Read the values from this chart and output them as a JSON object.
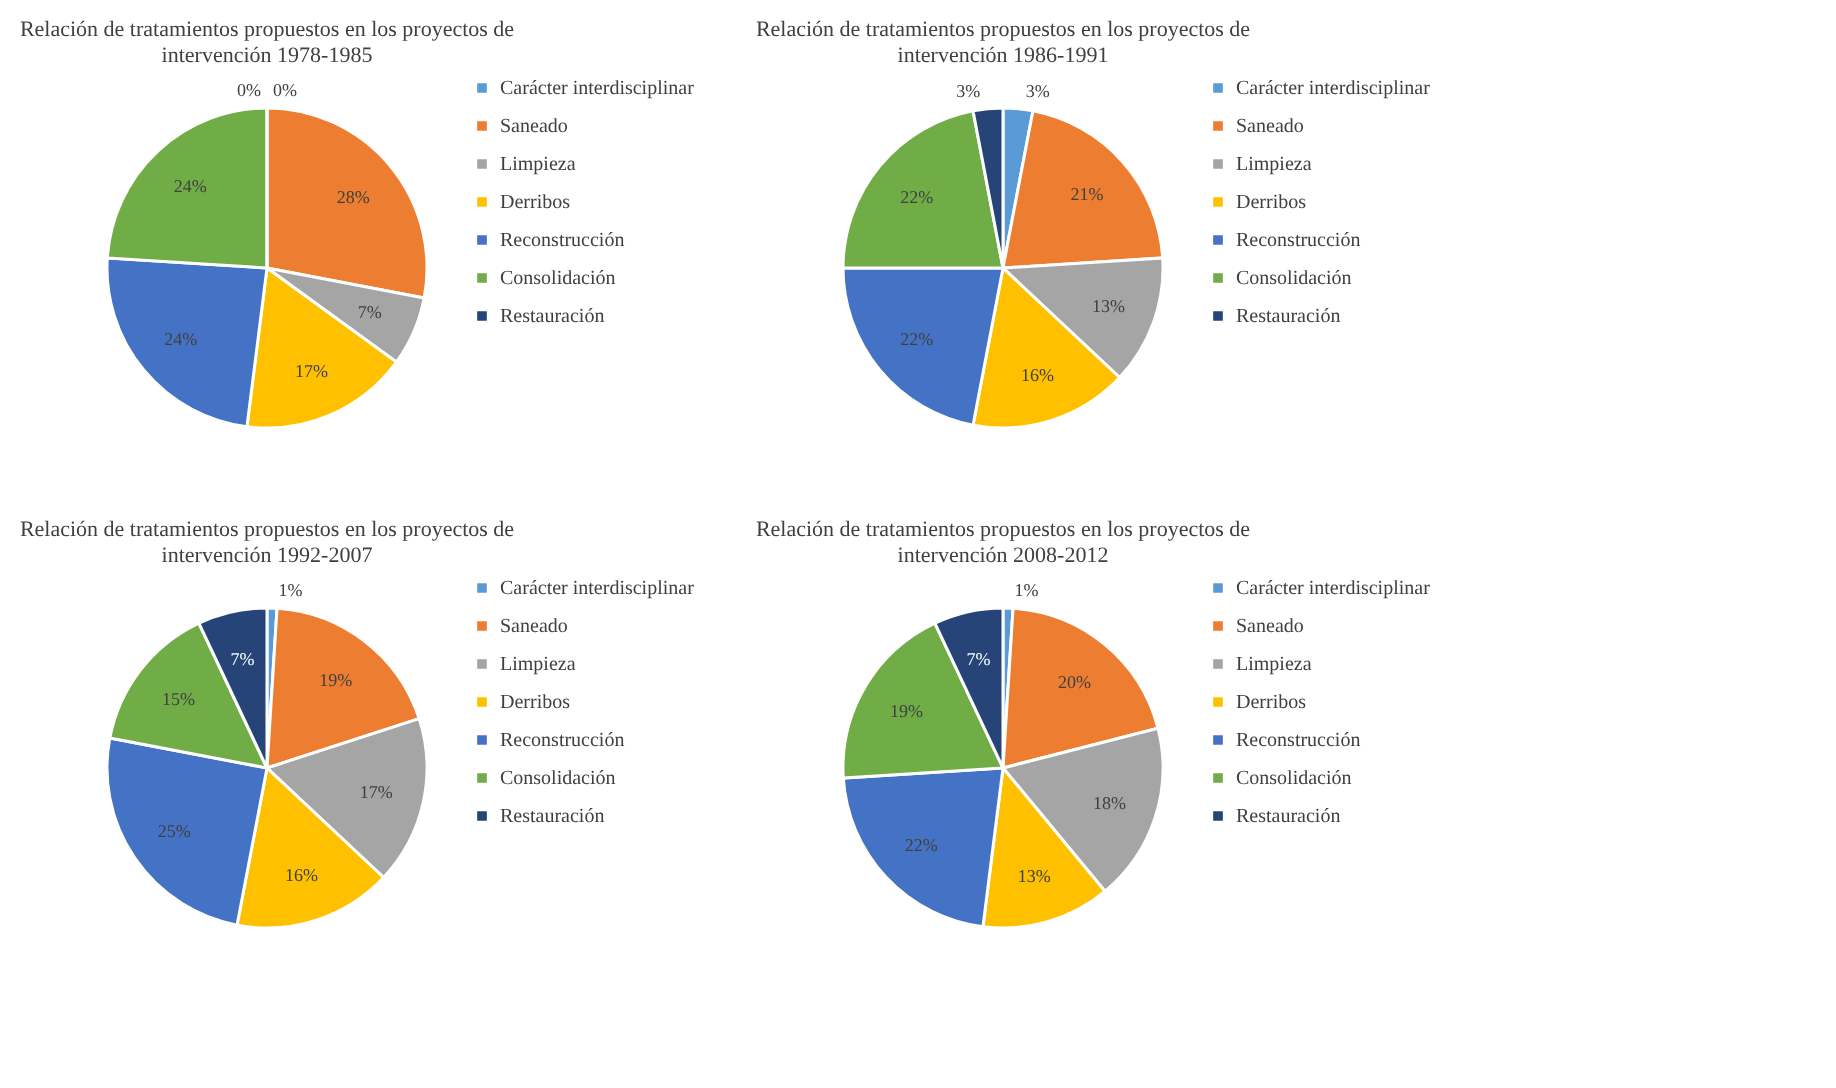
{
  "chart_data": [
    {
      "type": "pie",
      "title": "Relación de tratamientos propuestos en los proyectos de intervención 1978-1985",
      "categories": [
        "Carácter interdisciplinar",
        "Saneado",
        "Limpieza",
        "Derribos",
        "Reconstrucción",
        "Consolidación",
        "Restauración"
      ],
      "values": [
        0,
        28,
        7,
        17,
        24,
        24,
        0
      ],
      "value_labels": [
        "0%",
        "28%",
        "7%",
        "17%",
        "24%",
        "24%",
        "0%"
      ],
      "colors": [
        "#5b9bd5",
        "#ed7d31",
        "#a5a5a5",
        "#ffc000",
        "#4472c4",
        "#70ad47",
        "#264478"
      ],
      "legend": "right"
    },
    {
      "type": "pie",
      "title": "Relación de tratamientos propuestos en los proyectos de intervención 1986-1991",
      "categories": [
        "Carácter interdisciplinar",
        "Saneado",
        "Limpieza",
        "Derribos",
        "Reconstrucción",
        "Consolidación",
        "Restauración"
      ],
      "values": [
        3,
        21,
        13,
        16,
        22,
        22,
        3
      ],
      "value_labels": [
        "3%",
        "21%",
        "13%",
        "16%",
        "22%",
        "22%",
        "3%"
      ],
      "colors": [
        "#5b9bd5",
        "#ed7d31",
        "#a5a5a5",
        "#ffc000",
        "#4472c4",
        "#70ad47",
        "#264478"
      ],
      "legend": "right"
    },
    {
      "type": "pie",
      "title": "Relación de tratamientos propuestos en los proyectos de intervención 1992-2007",
      "categories": [
        "Carácter interdisciplinar",
        "Saneado",
        "Limpieza",
        "Derribos",
        "Reconstrucción",
        "Consolidación",
        "Restauración"
      ],
      "values": [
        1,
        19,
        17,
        16,
        25,
        15,
        7
      ],
      "value_labels": [
        "1%",
        "19%",
        "17%",
        "16%",
        "25%",
        "15%",
        "7%"
      ],
      "colors": [
        "#5b9bd5",
        "#ed7d31",
        "#a5a5a5",
        "#ffc000",
        "#4472c4",
        "#70ad47",
        "#264478"
      ],
      "legend": "right"
    },
    {
      "type": "pie",
      "title": "Relación de tratamientos propuestos en los proyectos de intervención 2008-2012",
      "categories": [
        "Carácter interdisciplinar",
        "Saneado",
        "Limpieza",
        "Derribos",
        "Reconstrucción",
        "Consolidación",
        "Restauración"
      ],
      "values": [
        1,
        20,
        18,
        13,
        22,
        19,
        7
      ],
      "value_labels": [
        "1%",
        "20%",
        "18%",
        "13%",
        "22%",
        "19%",
        "7%"
      ],
      "colors": [
        "#5b9bd5",
        "#ed7d31",
        "#a5a5a5",
        "#ffc000",
        "#4472c4",
        "#70ad47",
        "#264478"
      ],
      "legend": "right"
    }
  ]
}
